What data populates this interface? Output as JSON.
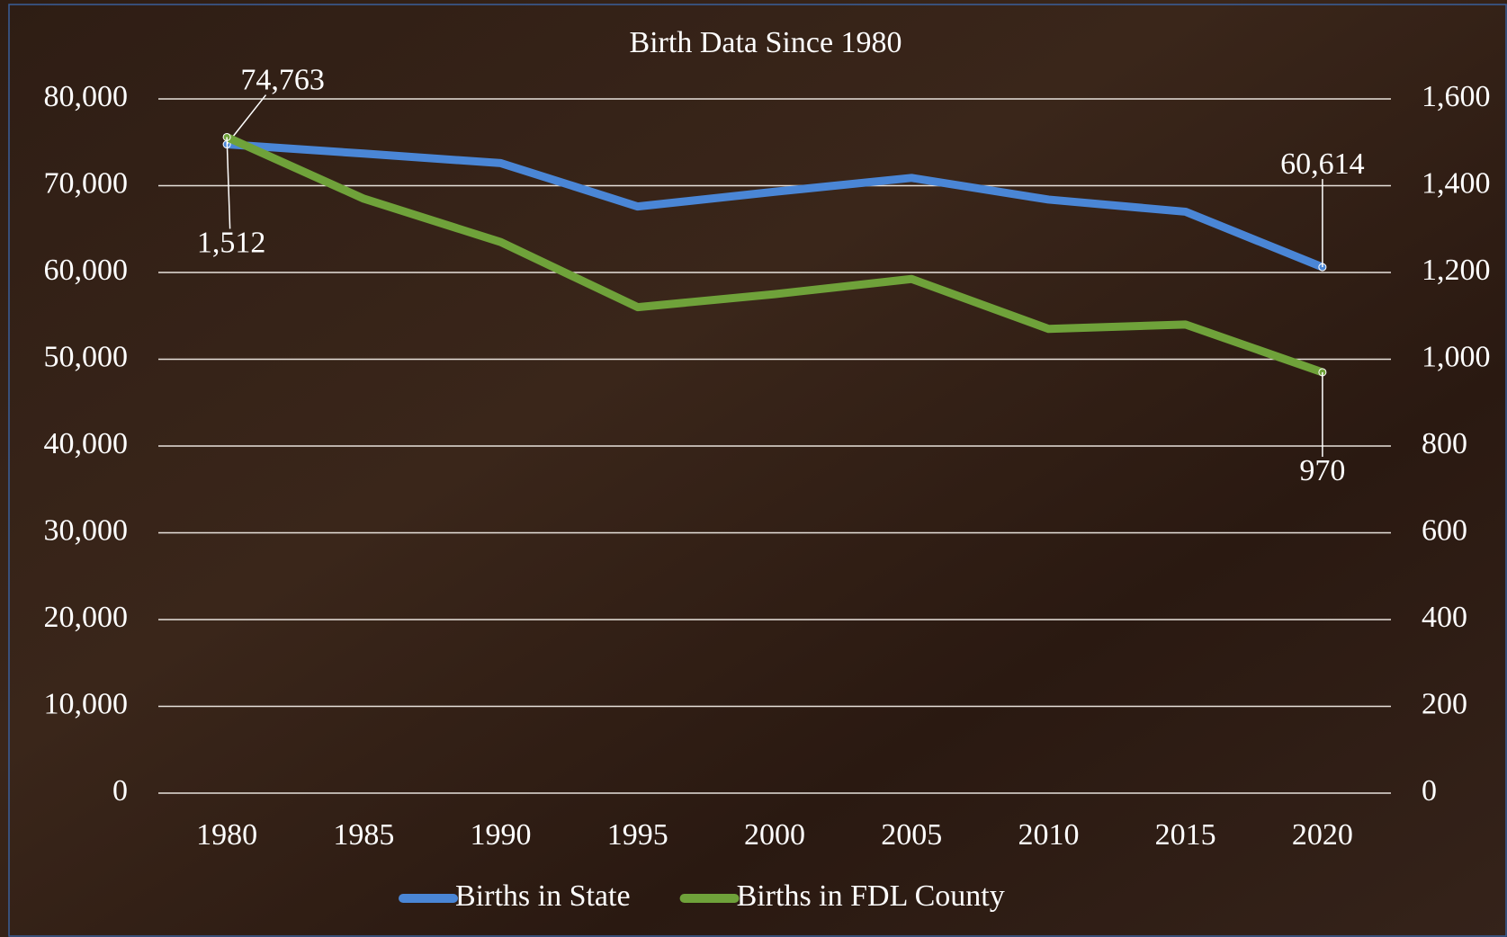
{
  "chart_data": {
    "type": "line",
    "title": "Birth Data Since 1980",
    "categories": [
      "1980",
      "1985",
      "1990",
      "1995",
      "2000",
      "2005",
      "2010",
      "2015",
      "2020"
    ],
    "series": [
      {
        "name": "Births in State",
        "color": "#4a86d6",
        "values": [
          74763,
          73700,
          72600,
          67600,
          69300,
          70900,
          68400,
          67000,
          60614
        ],
        "value_labels": [
          "74,763",
          null,
          null,
          null,
          null,
          null,
          null,
          null,
          "60,614"
        ]
      },
      {
        "name": "Births in FDL County",
        "color": "#6fa23a",
        "axis": "y2",
        "values": [
          1512,
          1370,
          1270,
          1120,
          1150,
          1185,
          1070,
          1080,
          970
        ],
        "value_labels": [
          "1,512",
          null,
          null,
          null,
          null,
          null,
          null,
          null,
          "970"
        ]
      }
    ],
    "ylim": [
      0,
      80000
    ],
    "yticks": [
      0,
      {
        "value": 10000,
        "label": "10,000"
      },
      {
        "value": 20000,
        "label": "20,000"
      },
      {
        "value": 30000,
        "label": "30,000"
      },
      {
        "value": 40000,
        "label": "40,000"
      },
      {
        "value": 50000,
        "label": "50,000"
      },
      {
        "value": 60000,
        "label": "60,000"
      },
      {
        "value": 70000,
        "label": "70,000"
      },
      {
        "value": 80000,
        "label": "80,000"
      }
    ],
    "y2lim": [
      0,
      1600
    ],
    "y2ticks": [
      0,
      200,
      400,
      600,
      800,
      {
        "value": 1000,
        "label": "1,000"
      },
      {
        "value": 1200,
        "label": "1,200"
      },
      {
        "value": 1400,
        "label": "1,400"
      },
      {
        "value": 1600,
        "label": "1,600"
      }
    ],
    "grid": true,
    "legend": "bottom"
  }
}
